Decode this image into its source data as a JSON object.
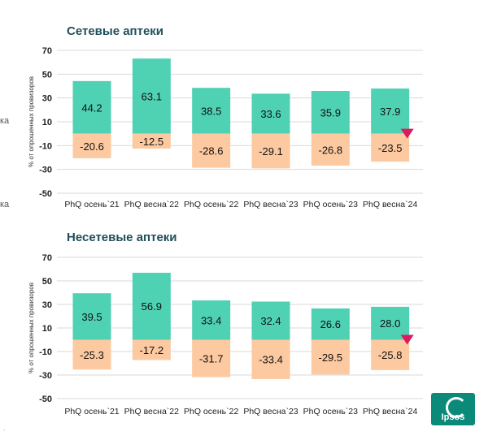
{
  "side_fragments": [
    "ка",
    "ка"
  ],
  "colors": {
    "positive": "#4fd1b4",
    "negative": "#fcc9a0",
    "grid": "#d9d9d9",
    "marker": "#e0185d",
    "title": "#1f4e5a"
  },
  "logo_text": "Ipsos",
  "chart_data": [
    {
      "type": "bar",
      "title": "Сетевые аптеки",
      "ylabel": "% от опрошенных провизоров",
      "ylim": [
        -50,
        70
      ],
      "yticks": [
        70,
        50,
        30,
        10,
        -10,
        -30,
        -50
      ],
      "grid": true,
      "categories": [
        "PhQ осень`21",
        "PhQ весна`22",
        "PhQ осень`22",
        "PhQ весна`23",
        "PhQ осень`23",
        "PhQ весна`24"
      ],
      "series": [
        {
          "values": [
            44.2,
            63.1,
            38.5,
            33.6,
            35.9,
            37.9
          ]
        },
        {
          "values": [
            -20.6,
            -12.5,
            -28.6,
            -29.1,
            -26.8,
            -23.5
          ]
        }
      ],
      "marker": {
        "category_index": 5,
        "shape": "down-triangle"
      }
    },
    {
      "type": "bar",
      "title": "Несетевые аптеки",
      "ylabel": "% от опрошенных провизоров",
      "ylim": [
        -50,
        70
      ],
      "yticks": [
        70,
        50,
        30,
        10,
        -10,
        -30,
        -50
      ],
      "grid": true,
      "categories": [
        "PhQ осень`21",
        "PhQ весна`22",
        "PhQ осень`22",
        "PhQ весна`23",
        "PhQ осень`23",
        "PhQ весна`24"
      ],
      "series": [
        {
          "values": [
            39.5,
            56.9,
            33.4,
            32.4,
            26.6,
            28.0
          ]
        },
        {
          "values": [
            -25.3,
            -17.2,
            -31.7,
            -33.4,
            -29.5,
            -25.8
          ]
        }
      ],
      "marker": {
        "category_index": 5,
        "shape": "down-triangle"
      }
    }
  ]
}
